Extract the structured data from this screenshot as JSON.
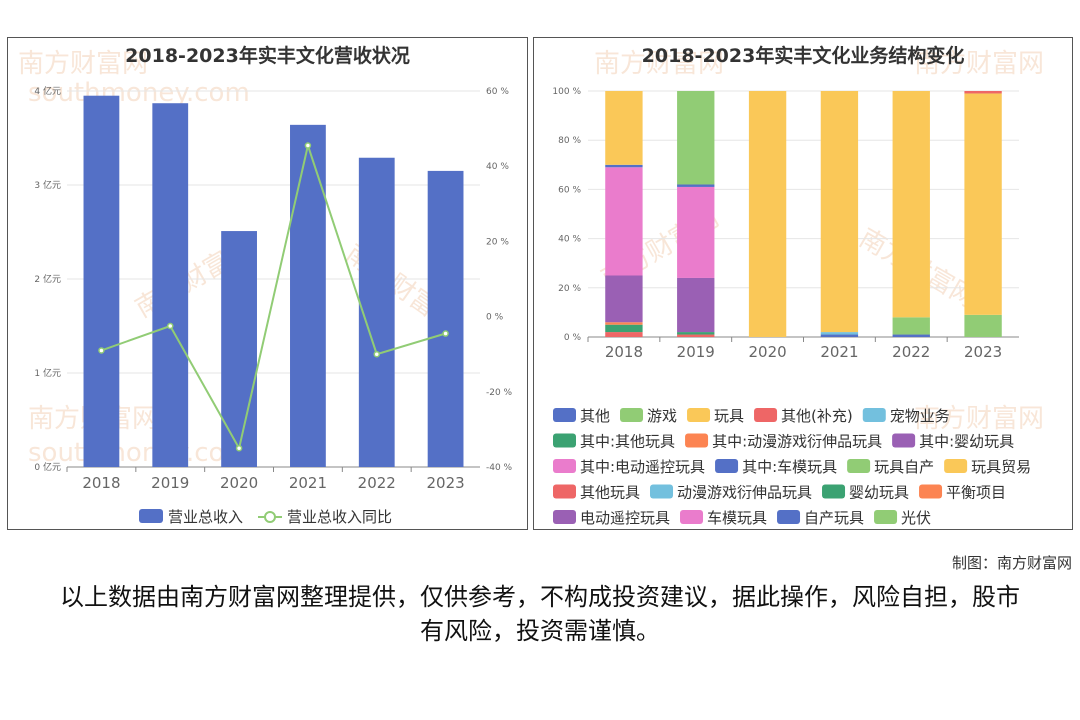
{
  "left_chart": {
    "title": "2018-2023年实丰文化营收状况",
    "chart_data": {
      "type": "bar",
      "categories": [
        "2018",
        "2019",
        "2020",
        "2021",
        "2022",
        "2023"
      ],
      "series": [
        {
          "name": "营业总收入",
          "type": "bar",
          "axis": "left",
          "values": [
            3.95,
            3.87,
            2.51,
            3.64,
            3.29,
            3.15
          ],
          "color": "#5470c6"
        },
        {
          "name": "营业总收入同比",
          "type": "line",
          "axis": "right",
          "values": [
            -9,
            -2.5,
            -35,
            45.5,
            -10,
            -4.5
          ],
          "color": "#91cc75"
        }
      ],
      "yleft": {
        "ticks": [
          "0 亿元",
          "1 亿元",
          "2 亿元",
          "3 亿元",
          "4 亿元"
        ],
        "min": 0,
        "max": 4
      },
      "yright": {
        "ticks": [
          "-40 %",
          "-20 %",
          "0 %",
          "20 %",
          "40 %",
          "60 %"
        ],
        "min": -40,
        "max": 60
      },
      "grid": true,
      "legend": "bottom"
    }
  },
  "right_chart": {
    "title": "2018-2023年实丰文化业务结构变化",
    "chart_data": {
      "type": "bar",
      "stacked": true,
      "categories": [
        "2018",
        "2019",
        "2020",
        "2021",
        "2022",
        "2023"
      ],
      "ylim": [
        0,
        100
      ],
      "yticks": [
        "0 %",
        "20 %",
        "40 %",
        "60 %",
        "80 %",
        "100 %"
      ],
      "legend": "bottom",
      "legend_items": [
        {
          "name": "其他",
          "color": "#5470c6"
        },
        {
          "name": "游戏",
          "color": "#91cc75"
        },
        {
          "name": "玩具",
          "color": "#fac858"
        },
        {
          "name": "其他(补充)",
          "color": "#ee6666"
        },
        {
          "name": "宠物业务",
          "color": "#73c0de"
        },
        {
          "name": "其中:其他玩具",
          "color": "#3ba272"
        },
        {
          "name": "其中:动漫游戏衍伸品玩具",
          "color": "#fc8452"
        },
        {
          "name": "其中:婴幼玩具",
          "color": "#9a60b4"
        },
        {
          "name": "其中:电动遥控玩具",
          "color": "#ea7ccc"
        },
        {
          "name": "其中:车模玩具",
          "color": "#5470c6"
        },
        {
          "name": "玩具自产",
          "color": "#91cc75"
        },
        {
          "name": "玩具贸易",
          "color": "#fac858"
        },
        {
          "name": "其他玩具",
          "color": "#ee6666"
        },
        {
          "name": "动漫游戏衍伸品玩具",
          "color": "#73c0de"
        },
        {
          "name": "婴幼玩具",
          "color": "#3ba272"
        },
        {
          "name": "平衡项目",
          "color": "#fc8452"
        },
        {
          "name": "电动遥控玩具",
          "color": "#9a60b4"
        },
        {
          "name": "车模玩具",
          "color": "#ea7ccc"
        },
        {
          "name": "自产玩具",
          "color": "#5470c6"
        },
        {
          "name": "光伏",
          "color": "#91cc75"
        }
      ],
      "stacks": [
        [
          {
            "name": "其他玩具",
            "value": 2,
            "color": "#ee6666"
          },
          {
            "name": "婴幼玩具",
            "value": 3,
            "color": "#3ba272"
          },
          {
            "name": "平衡项目",
            "value": 1,
            "color": "#fc8452"
          },
          {
            "name": "电动遥控玩具",
            "value": 19,
            "color": "#9a60b4"
          },
          {
            "name": "车模玩具",
            "value": 44,
            "color": "#ea7ccc"
          },
          {
            "name": "自产玩具",
            "value": 1,
            "color": "#5470c6"
          },
          {
            "name": "玩具",
            "value": 30,
            "color": "#fac858"
          }
        ],
        [
          {
            "name": "其他玩具",
            "value": 1,
            "color": "#ee6666"
          },
          {
            "name": "婴幼玩具",
            "value": 1,
            "color": "#3ba272"
          },
          {
            "name": "电动遥控玩具",
            "value": 22,
            "color": "#9a60b4"
          },
          {
            "name": "车模玩具",
            "value": 37,
            "color": "#ea7ccc"
          },
          {
            "name": "自产玩具",
            "value": 1,
            "color": "#5470c6"
          },
          {
            "name": "游戏",
            "value": 38,
            "color": "#91cc75"
          }
        ],
        [
          {
            "name": "玩具",
            "value": 100,
            "color": "#fac858"
          }
        ],
        [
          {
            "name": "其他",
            "value": 1,
            "color": "#5470c6"
          },
          {
            "name": "宠物业务",
            "value": 1,
            "color": "#73c0de"
          },
          {
            "name": "玩具",
            "value": 98,
            "color": "#fac858"
          }
        ],
        [
          {
            "name": "其他",
            "value": 1,
            "color": "#5470c6"
          },
          {
            "name": "玩具自产",
            "value": 7,
            "color": "#91cc75"
          },
          {
            "name": "玩具贸易",
            "value": 92,
            "color": "#fac858"
          }
        ],
        [
          {
            "name": "光伏",
            "value": 9,
            "color": "#91cc75"
          },
          {
            "name": "玩具贸易",
            "value": 90,
            "color": "#fac858"
          },
          {
            "name": "其他(补充)",
            "value": 1,
            "color": "#ee6666"
          }
        ]
      ]
    }
  },
  "watermark": [
    "南方财富网",
    "southmoney.com"
  ],
  "credit": "制图：南方财富网",
  "disclaimer": "以上数据由南方财富网整理提供，仅供参考，不构成投资建议，据此操作，风险自担，股市有风险，投资需谨慎。"
}
